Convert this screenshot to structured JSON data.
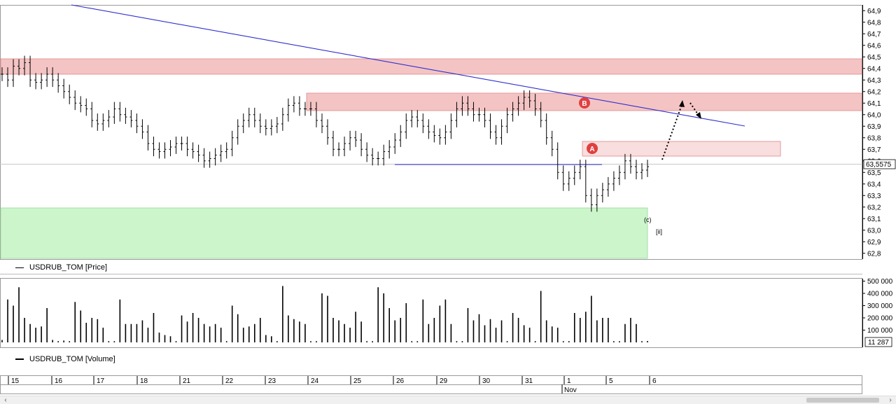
{
  "price_panel": {
    "legend": "USDRUB_TOM [Price]",
    "current_price": "63,5575"
  },
  "volume_panel": {
    "legend": "USDRUB_TOM [Volume]",
    "current_volume": "11 287"
  },
  "x_axis": {
    "day_labels": [
      "15",
      "16",
      "17",
      "18",
      "21",
      "22",
      "23",
      "24",
      "25",
      "26",
      "29",
      "30",
      "31",
      "1",
      "5",
      "6"
    ],
    "month_label": "Nov"
  },
  "annotations": {
    "wave_a": "A",
    "wave_b": "B",
    "wave_c": "(c)",
    "wave_ii": "[ii]"
  },
  "colors": {
    "resistance_zone": "#f4c4c4",
    "support_zone": "#ccf5cc",
    "trendline": "#2f2fcf",
    "bars": "#000000",
    "marker": "#e04040"
  },
  "chart_data": [
    {
      "type": "ohlc",
      "title": "USDRUB_TOM [Price]",
      "ylim": [
        62.75,
        64.95
      ],
      "y_ticks": [
        "64,9",
        "64,8",
        "64,7",
        "64,6",
        "64,5",
        "64,4",
        "64,3",
        "64,2",
        "64,1",
        "64,0",
        "63,9",
        "63,8",
        "63,7",
        "63,6",
        "63,5",
        "63,4",
        "63,3",
        "63,2",
        "63,1",
        "63,0",
        "62,9",
        "62,8"
      ],
      "close": [
        64.35,
        64.3,
        64.42,
        64.4,
        64.45,
        64.3,
        64.28,
        64.3,
        64.35,
        64.3,
        64.25,
        64.2,
        64.15,
        64.1,
        64.08,
        64.05,
        63.95,
        63.92,
        63.95,
        63.98,
        64.05,
        64.0,
        63.98,
        63.95,
        63.9,
        63.85,
        63.75,
        63.7,
        63.68,
        63.7,
        63.72,
        63.75,
        63.75,
        63.7,
        63.68,
        63.65,
        63.6,
        63.62,
        63.65,
        63.68,
        63.7,
        63.8,
        63.9,
        63.95,
        64.0,
        63.95,
        63.9,
        63.88,
        63.9,
        63.92,
        64.0,
        64.08,
        64.1,
        64.05,
        64.05,
        64.05,
        63.95,
        63.9,
        63.8,
        63.7,
        63.7,
        63.75,
        63.8,
        63.78,
        63.7,
        63.65,
        63.62,
        63.62,
        63.68,
        63.72,
        63.78,
        63.85,
        63.95,
        63.98,
        63.95,
        63.9,
        63.85,
        63.82,
        63.8,
        63.85,
        63.95,
        64.05,
        64.1,
        64.05,
        64.0,
        64.0,
        63.95,
        63.85,
        63.8,
        63.9,
        64.0,
        64.05,
        64.1,
        64.15,
        64.12,
        64.05,
        63.95,
        63.8,
        63.7,
        63.5,
        63.4,
        63.45,
        63.5,
        63.55,
        63.3,
        63.22,
        63.3,
        63.35,
        63.4,
        63.45,
        63.5,
        63.6,
        63.55,
        63.5,
        63.52,
        63.55
      ],
      "annotations": [
        "A",
        "B",
        "(c)",
        "[ii]"
      ]
    },
    {
      "type": "bar",
      "title": "USDRUB_TOM [Volume]",
      "ylim": [
        0,
        520000
      ],
      "y_ticks": [
        "500 000",
        "400 000",
        "300 000",
        "200 000",
        "100 000"
      ],
      "values": [
        20000,
        350000,
        300000,
        450000,
        200000,
        150000,
        120000,
        130000,
        280000,
        20000,
        10000,
        15000,
        10000,
        330000,
        260000,
        160000,
        200000,
        190000,
        120000,
        10000,
        10000,
        350000,
        150000,
        150000,
        150000,
        180000,
        120000,
        240000,
        80000,
        60000,
        50000,
        10000,
        220000,
        170000,
        240000,
        200000,
        150000,
        130000,
        150000,
        120000,
        10000,
        300000,
        230000,
        120000,
        130000,
        150000,
        200000,
        60000,
        50000,
        10000,
        460000,
        220000,
        190000,
        170000,
        150000,
        10000,
        10000,
        400000,
        380000,
        200000,
        180000,
        150000,
        120000,
        250000,
        170000,
        10000,
        10000,
        450000,
        400000,
        280000,
        180000,
        200000,
        320000,
        10000,
        10000,
        350000,
        150000,
        200000,
        300000,
        350000,
        150000,
        10000,
        10000,
        280000,
        180000,
        230000,
        140000,
        190000,
        120000,
        180000,
        10000,
        240000,
        200000,
        140000,
        120000,
        10000,
        420000,
        180000,
        130000,
        120000,
        10000,
        10000,
        240000,
        200000,
        250000,
        380000,
        180000,
        200000,
        200000,
        10000,
        10000,
        150000,
        200000,
        150000,
        10000,
        11287
      ]
    }
  ]
}
